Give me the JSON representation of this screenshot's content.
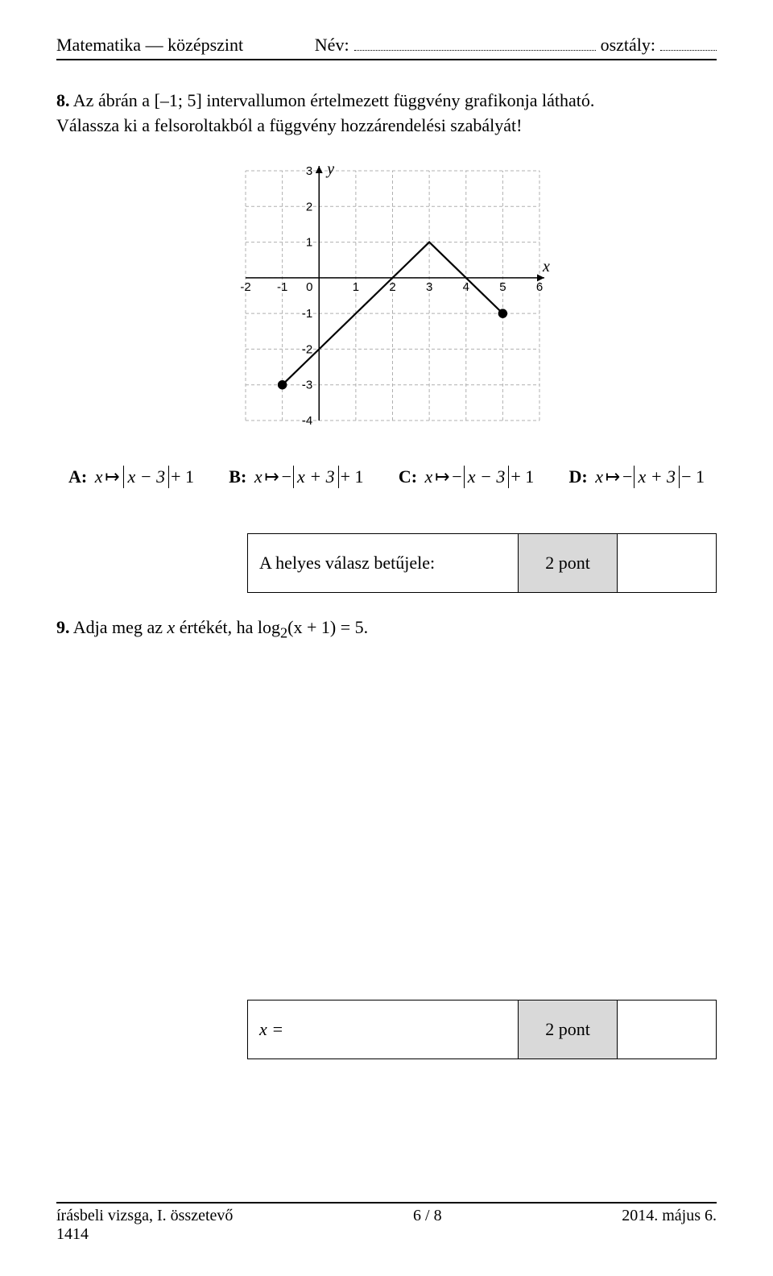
{
  "header": {
    "subject": "Matematika — középszint",
    "name_label": "Név:",
    "class_label": "osztály:"
  },
  "q8": {
    "number": "8.",
    "text_line1": "Az ábrán a [–1; 5] intervallumon értelmezett függvény grafikonja látható.",
    "text_line2": "Válassza ki a felsoroltakból a függvény hozzárendelési szabályát!",
    "options": {
      "A": {
        "label": "A",
        "sign": "",
        "inside": "x − 3",
        "tail": "+ 1"
      },
      "B": {
        "label": "B",
        "sign": "−",
        "inside": "x + 3",
        "tail": "+ 1"
      },
      "C": {
        "label": "C",
        "sign": "−",
        "inside": "x − 3",
        "tail": "+ 1"
      },
      "D": {
        "label": "D",
        "sign": "−",
        "inside": "x + 3",
        "tail": "− 1"
      }
    },
    "answer": {
      "label": "A helyes válasz betűjele:",
      "points": "2 pont"
    }
  },
  "q9": {
    "number": "9.",
    "text_prefix": "Adja meg az ",
    "text_var": "x",
    "text_mid": " értékét, ha ",
    "log_base": "2",
    "log_arg": "(x + 1)",
    "rhs": " = 5",
    "answer": {
      "label": "x =",
      "points": "2 pont"
    }
  },
  "chart": {
    "type": "line",
    "xlim": [
      -2,
      6
    ],
    "ylim": [
      -4,
      3
    ],
    "xticks": [
      -2,
      -1,
      0,
      1,
      2,
      3,
      4,
      5,
      6
    ],
    "yticks": [
      -4,
      -3,
      -2,
      -1,
      1,
      2,
      3
    ],
    "x_axis_label": "x",
    "y_axis_label": "y",
    "grid_color": "#b0b0b0",
    "axis_color": "#000000",
    "background_color": "#ffffff",
    "line_color": "#000000",
    "line_width": 2.2,
    "points": [
      {
        "x": -1,
        "y": -3
      },
      {
        "x": 3,
        "y": 1
      },
      {
        "x": 5,
        "y": -1
      }
    ],
    "endpoints_filled": true,
    "marker_radius": 5
  },
  "footer": {
    "left_line1": "írásbeli vizsga, I. összetevő",
    "left_line2": "1414",
    "center": "6 / 8",
    "right": "2014. május 6."
  }
}
